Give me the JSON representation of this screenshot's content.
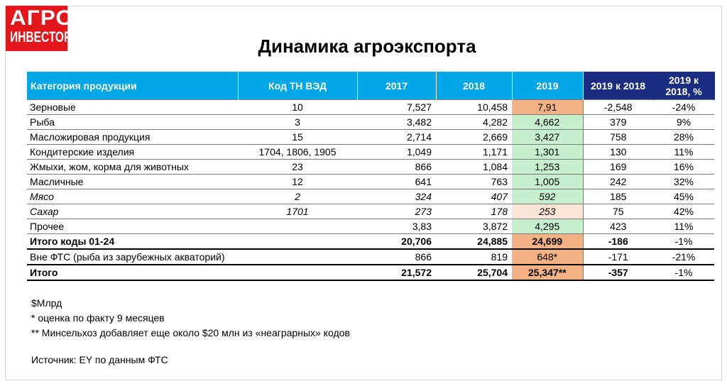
{
  "logo": {
    "line1": "АГРО",
    "line2": "ИНВЕСТОР"
  },
  "title": "Динамика агроэкспорта",
  "table": {
    "headers": [
      "Категория продукции",
      "Код ТН ВЭД",
      "2017",
      "2018",
      "2019",
      "2019 к 2018",
      "2019 к 2018, %"
    ],
    "rows": [
      {
        "cat": "Зерновые",
        "code": "10",
        "y2017": "7,527",
        "y2018": "10,458",
        "y2019": "7,91",
        "diff": "-2,548",
        "pct": "-24%"
      },
      {
        "cat": "Рыба",
        "code": "3",
        "y2017": "3,482",
        "y2018": "4,282",
        "y2019": "4,662",
        "diff": "379",
        "pct": "9%"
      },
      {
        "cat": "Масложировая продукция",
        "code": "15",
        "y2017": "2,714",
        "y2018": "2,669",
        "y2019": "3,427",
        "diff": "758",
        "pct": "28%"
      },
      {
        "cat": "Кондитерские изделия",
        "code": "1704, 1806, 1905",
        "y2017": "1,049",
        "y2018": "1,171",
        "y2019": "1,301",
        "diff": "130",
        "pct": "11%"
      },
      {
        "cat": "Жмыхи, жом, корма для животных",
        "code": "23",
        "y2017": "866",
        "y2018": "1,084",
        "y2019": "1,253",
        "diff": "169",
        "pct": "16%"
      },
      {
        "cat": "Масличные",
        "code": "12",
        "y2017": "641",
        "y2018": "763",
        "y2019": "1,005",
        "diff": "242",
        "pct": "32%"
      },
      {
        "cat": "Мясо",
        "code": "2",
        "y2017": "324",
        "y2018": "407",
        "y2019": "592",
        "diff": "185",
        "pct": "45%"
      },
      {
        "cat": "Сахар",
        "code": "1701",
        "y2017": "273",
        "y2018": "178",
        "y2019": "253",
        "diff": "75",
        "pct": "42%"
      },
      {
        "cat": "Прочее",
        "code": "",
        "y2017": "3,83",
        "y2018": "3,872",
        "y2019": "4,295",
        "diff": "423",
        "pct": "11%"
      },
      {
        "cat": "Итого коды 01-24",
        "code": "",
        "y2017": "20,706",
        "y2018": "24,885",
        "y2019": "24,699",
        "diff": "-186",
        "pct": "-1%"
      },
      {
        "cat": "Вне ФТС (рыба из зарубежных акваторий)",
        "code": "",
        "y2017": "866",
        "y2018": "819",
        "y2019": "648*",
        "diff": "-171",
        "pct": "-21%"
      },
      {
        "cat": "Итого",
        "code": "",
        "y2017": "21,572",
        "y2018": "25,704",
        "y2019": "25,347**",
        "diff": "-357",
        "pct": "-1%"
      }
    ]
  },
  "notes": {
    "unit": "$Млрд",
    "note1": "* оценка по факту 9 месяцев",
    "note2": "** Минсельхоз добавляет еще около $20 млн из «неаграрных» кодов",
    "source": "Источник: EY по данным ФТС"
  },
  "colors": {
    "header_blue": "#00a6e6",
    "header_dark": "#1b2d80",
    "highlight_orange": "#f4b183",
    "highlight_green": "#c6efce",
    "highlight_peach": "#fce4d6",
    "logo_red": "#e3161b"
  }
}
